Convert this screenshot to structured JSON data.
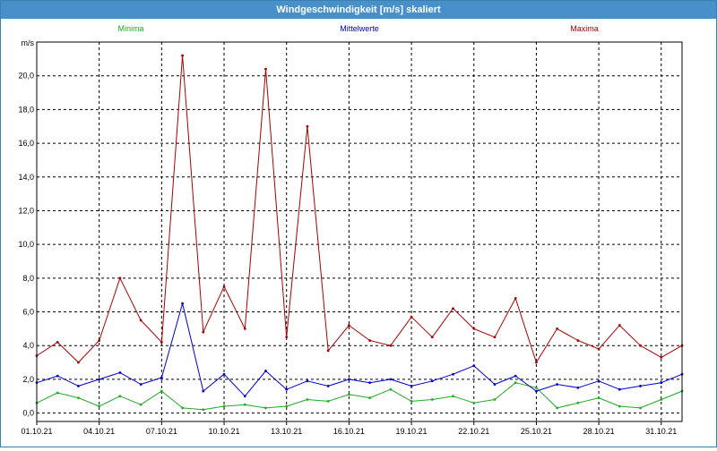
{
  "window": {
    "title": "Windgeschwindigkeit [m/s] skaliert"
  },
  "colors": {
    "minima": "#22aa22",
    "mittelwerte": "#0000cc",
    "maxima": "#aa0000",
    "grid": "#000000",
    "title_bar": "#4a90c8"
  },
  "chart_data": {
    "type": "line",
    "ylabel": "m/s",
    "ylim": [
      -0.5,
      22
    ],
    "yticks": [
      "0,0",
      "2,0",
      "4,0",
      "6,0",
      "8,0",
      "10,0",
      "12,0",
      "14,0",
      "16,0",
      "18,0",
      "20,0"
    ],
    "xlim": [
      "2021-10-01",
      "2021-11-01"
    ],
    "xticks": [
      "01.10.21",
      "04.10.21",
      "07.10.21",
      "10.10.21",
      "13.10.21",
      "16.10.21",
      "19.10.21",
      "22.10.21",
      "25.10.21",
      "28.10.21",
      "31.10.21"
    ],
    "grid": true,
    "legend_position": "top",
    "x": [
      "2021-10-01",
      "2021-10-02",
      "2021-10-03",
      "2021-10-04",
      "2021-10-05",
      "2021-10-06",
      "2021-10-07",
      "2021-10-08",
      "2021-10-09",
      "2021-10-10",
      "2021-10-11",
      "2021-10-12",
      "2021-10-13",
      "2021-10-14",
      "2021-10-15",
      "2021-10-16",
      "2021-10-17",
      "2021-10-18",
      "2021-10-19",
      "2021-10-20",
      "2021-10-21",
      "2021-10-22",
      "2021-10-23",
      "2021-10-24",
      "2021-10-25",
      "2021-10-26",
      "2021-10-27",
      "2021-10-28",
      "2021-10-29",
      "2021-10-30",
      "2021-10-31",
      "2021-11-01"
    ],
    "series": [
      {
        "name": "Minima",
        "values": [
          0.6,
          1.2,
          0.9,
          0.4,
          1.0,
          0.5,
          1.3,
          0.3,
          0.2,
          0.4,
          0.5,
          0.3,
          0.4,
          0.8,
          0.7,
          1.1,
          0.9,
          1.4,
          0.7,
          0.8,
          1.0,
          0.6,
          0.8,
          1.8,
          1.5,
          0.3,
          0.6,
          0.9,
          0.4,
          0.3,
          0.8,
          1.3
        ]
      },
      {
        "name": "Mittelwerte",
        "values": [
          1.8,
          2.2,
          1.6,
          2.0,
          2.4,
          1.7,
          2.1,
          6.5,
          1.3,
          2.3,
          1.0,
          2.5,
          1.4,
          1.9,
          1.6,
          2.0,
          1.8,
          2.0,
          1.6,
          1.9,
          2.3,
          2.8,
          1.7,
          2.2,
          1.3,
          1.7,
          1.5,
          1.9,
          1.4,
          1.6,
          1.8,
          2.3
        ]
      },
      {
        "name": "Maxima",
        "values": [
          3.4,
          4.2,
          3.0,
          4.3,
          8.0,
          5.5,
          4.2,
          21.2,
          4.8,
          7.5,
          5.0,
          20.4,
          4.5,
          17.0,
          3.7,
          5.2,
          4.3,
          4.0,
          5.7,
          4.5,
          6.2,
          5.0,
          4.5,
          6.8,
          3.0,
          5.0,
          4.3,
          3.8,
          5.2,
          4.0,
          3.3,
          4.0
        ]
      }
    ]
  }
}
